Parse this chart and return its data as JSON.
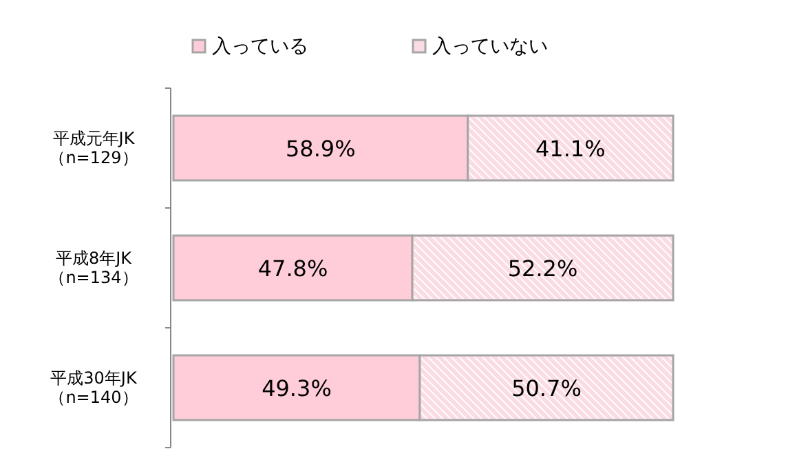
{
  "chart_data": {
    "type": "bar",
    "orientation": "horizontal",
    "stacked": true,
    "legend": "top",
    "categories": [
      "平成元年JK\n（n=129）",
      "平成8年JK\n（n=134）",
      "平成30年JK\n（n=140）"
    ],
    "series": [
      {
        "name": "入っている",
        "color": "#ffccda",
        "values": [
          58.9,
          47.8,
          49.3
        ],
        "value_labels": [
          "58.9%",
          "47.8%",
          "49.3%"
        ]
      },
      {
        "name": "入っていない",
        "color": "#fbdbe4",
        "values": [
          41.1,
          52.2,
          50.7
        ],
        "value_labels": [
          "41.1%",
          "52.2%",
          "50.7%"
        ]
      }
    ]
  }
}
